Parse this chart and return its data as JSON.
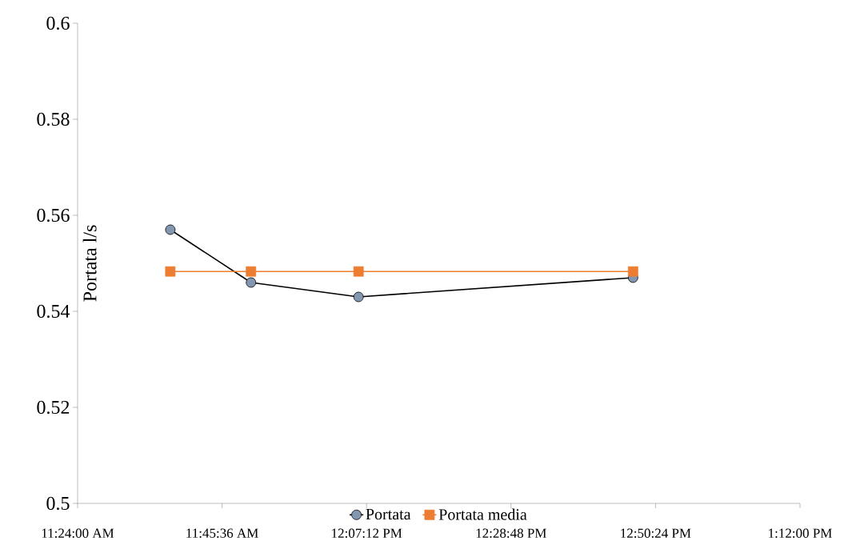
{
  "chart_data": {
    "type": "line",
    "ylabel": "Portata l/s",
    "x": [
      11.631,
      11.832,
      12.1,
      12.784
    ],
    "xlim": [
      11.4,
      13.2
    ],
    "xticks": [
      {
        "value": 11.4,
        "label": "11:24:00 AM"
      },
      {
        "value": 11.76,
        "label": "11:45:36 AM"
      },
      {
        "value": 12.12,
        "label": "12:07:12 PM"
      },
      {
        "value": 12.48,
        "label": "12:28:48 PM"
      },
      {
        "value": 12.84,
        "label": "12:50:24 PM"
      },
      {
        "value": 13.2,
        "label": "1:12:00 PM"
      }
    ],
    "ylim": [
      0.5,
      0.6
    ],
    "yticks": [
      0.5,
      0.52,
      0.54,
      0.56,
      0.58,
      0.6
    ],
    "series": [
      {
        "name": "Portata",
        "color": "#000000",
        "marker": "circle",
        "values": [
          0.557,
          0.546,
          0.543,
          0.547
        ]
      },
      {
        "name": "Portata media",
        "color": "#ed7d31",
        "marker": "square",
        "values": [
          0.5483,
          0.5483,
          0.5483,
          0.5483
        ]
      }
    ],
    "grid": false,
    "legend": "bottom"
  }
}
